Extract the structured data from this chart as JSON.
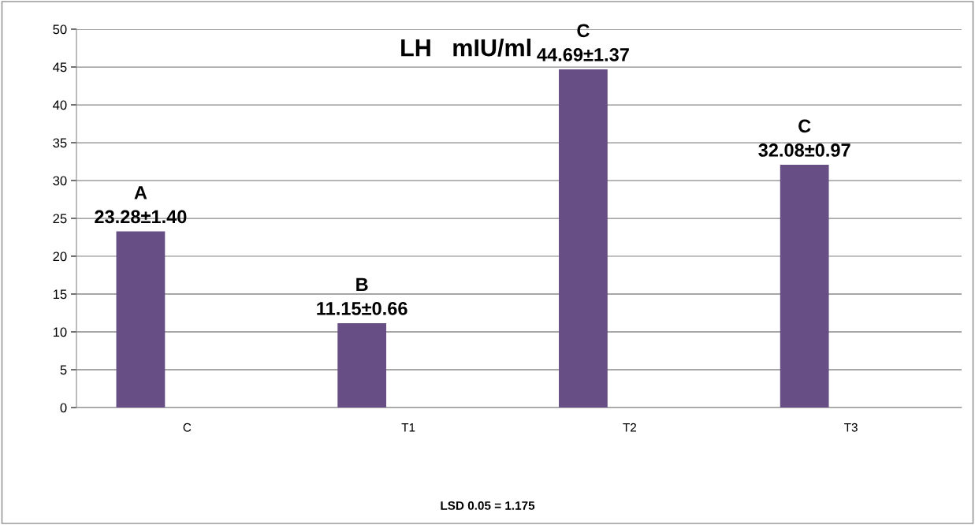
{
  "chart_data": {
    "type": "bar",
    "title": "LH   mIU/ml",
    "categories": [
      "C",
      "T1",
      "T2",
      "T3"
    ],
    "values": [
      23.28,
      11.15,
      44.69,
      32.08
    ],
    "value_labels": [
      "A\n23.28±1.40",
      "B\n11.15±0.66",
      "C\n44.69±1.37",
      "C\n32.08±0.97"
    ],
    "color": "#674f85",
    "ylim": [
      0,
      50
    ],
    "yticks": [
      0,
      5,
      10,
      15,
      20,
      25,
      30,
      35,
      40,
      45,
      50
    ],
    "grid": "y",
    "annotations": [
      "LSD 0.05 = 1.175"
    ]
  }
}
